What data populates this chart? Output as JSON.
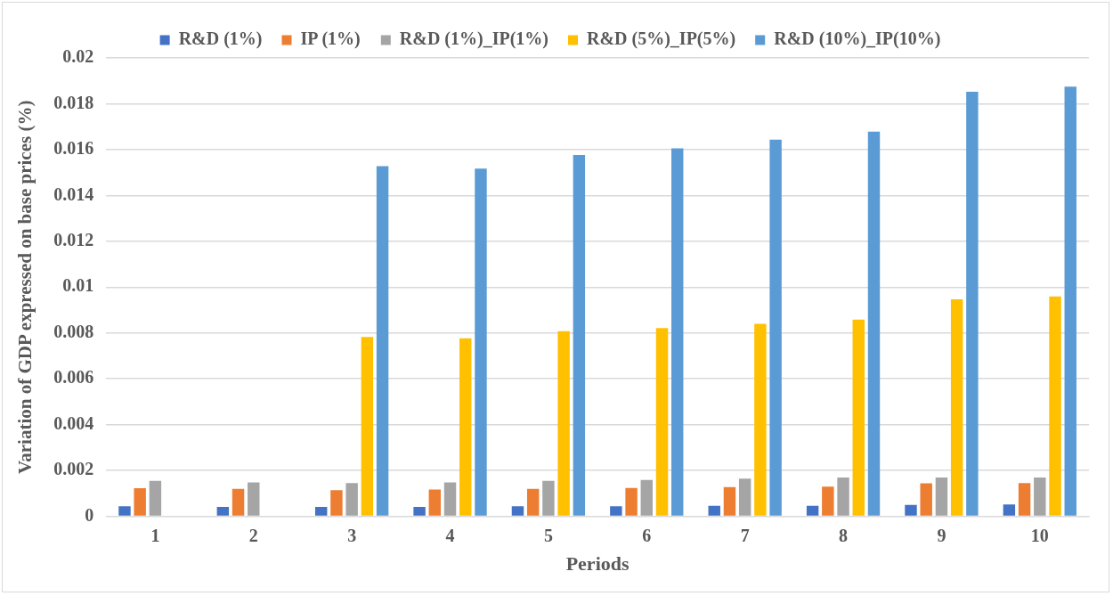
{
  "chart_data": {
    "type": "bar",
    "xlabel": "Periods",
    "ylabel": "Variation of GDP expressed on base prices (%)",
    "categories": [
      "1",
      "2",
      "3",
      "4",
      "5",
      "6",
      "7",
      "8",
      "9",
      "10"
    ],
    "series": [
      {
        "name": "R&D (1%)",
        "color": "#4472c4",
        "values": [
          0.00044,
          0.00041,
          0.00041,
          0.00041,
          0.00044,
          0.00044,
          0.00046,
          0.00046,
          0.0005,
          0.00052
        ]
      },
      {
        "name": "IP (1%)",
        "color": "#ed7d31",
        "values": [
          0.00123,
          0.0012,
          0.00114,
          0.00117,
          0.0012,
          0.00124,
          0.00128,
          0.0013,
          0.00144,
          0.00145
        ]
      },
      {
        "name": "R&D (1%)_IP(1%)",
        "color": "#a5a5a5",
        "values": [
          0.00155,
          0.00148,
          0.00145,
          0.00148,
          0.00155,
          0.00159,
          0.00165,
          0.00169,
          0.00169,
          0.00169
        ]
      },
      {
        "name": "R&D (5%)_IP(5%)",
        "color": "#ffc000",
        "values": [
          null,
          null,
          0.00783,
          0.00777,
          0.00808,
          0.00821,
          0.0084,
          0.00858,
          0.00947,
          0.00959
        ]
      },
      {
        "name": "R&D (10%)_IP(10%)",
        "color": "#5b9bd5",
        "values": [
          null,
          null,
          0.01528,
          0.01517,
          0.01576,
          0.01606,
          0.01643,
          0.01678,
          0.01852,
          0.01875
        ]
      }
    ],
    "ylim": [
      0,
      0.02
    ],
    "yticks": [
      0,
      0.002,
      0.004,
      0.006,
      0.008,
      0.01,
      0.012,
      0.014,
      0.016,
      0.018,
      0.02
    ],
    "grid": "y",
    "legend": "top"
  }
}
